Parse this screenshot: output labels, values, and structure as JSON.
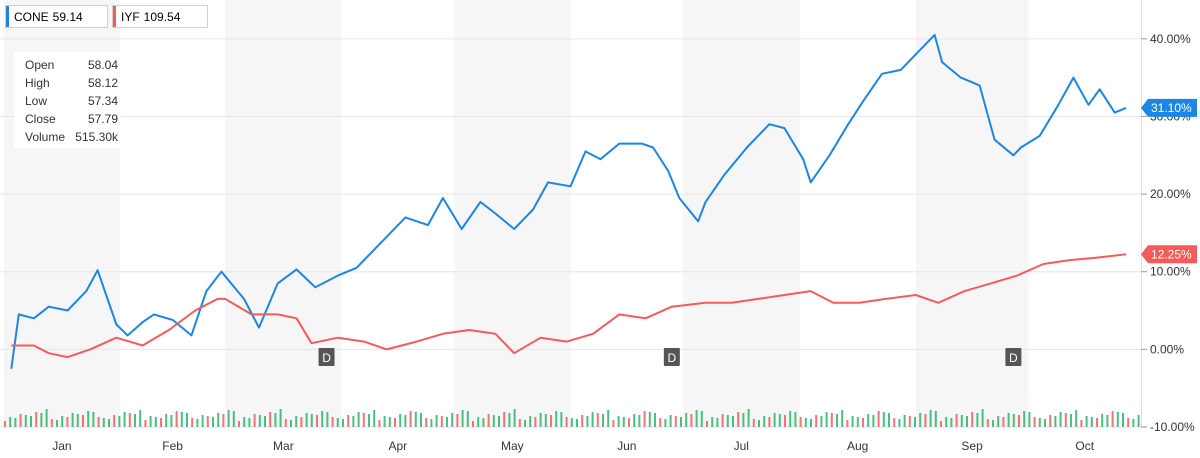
{
  "legend": [
    {
      "symbol": "CONE",
      "value": "59.14",
      "color": "#1c86e4"
    },
    {
      "symbol": "IYF",
      "value": "109.54",
      "color": "#f45b5b"
    }
  ],
  "ohlc": [
    {
      "label": "Open",
      "value": "58.04"
    },
    {
      "label": "High",
      "value": "58.12"
    },
    {
      "label": "Low",
      "value": "57.34"
    },
    {
      "label": "Close",
      "value": "57.79"
    },
    {
      "label": "Volume",
      "value": "515.30k"
    }
  ],
  "chart_data": {
    "type": "line",
    "title": "",
    "xlabel": "",
    "ylabel": "",
    "ylim": [
      -10,
      45
    ],
    "grid": true,
    "y_ticks": [
      "40.00%",
      "30.00%",
      "20.00%",
      "10.00%",
      "0.00%",
      "-10.00%"
    ],
    "x_ticks": [
      "Jan",
      "Feb",
      "Mar",
      "Apr",
      "May",
      "Jun",
      "Jul",
      "Aug",
      "Sep",
      "Oct"
    ],
    "dividend_marker_label": "D",
    "dividend_dates": [
      "2017-03-28",
      "2017-06-28",
      "2017-09-27"
    ],
    "series": [
      {
        "name": "CONE",
        "color": "#1c86e4",
        "last_label": "31.10%",
        "points": [
          [
            "2017-01-03",
            -2.5
          ],
          [
            "2017-01-05",
            4.5
          ],
          [
            "2017-01-09",
            4.0
          ],
          [
            "2017-01-13",
            5.5
          ],
          [
            "2017-01-18",
            5.0
          ],
          [
            "2017-01-23",
            7.5
          ],
          [
            "2017-01-26",
            10.2
          ],
          [
            "2017-01-31",
            3.2
          ],
          [
            "2017-02-03",
            1.8
          ],
          [
            "2017-02-07",
            3.5
          ],
          [
            "2017-02-10",
            4.5
          ],
          [
            "2017-02-15",
            3.8
          ],
          [
            "2017-02-20",
            1.8
          ],
          [
            "2017-02-24",
            7.5
          ],
          [
            "2017-02-28",
            10.0
          ],
          [
            "2017-03-06",
            6.5
          ],
          [
            "2017-03-10",
            2.8
          ],
          [
            "2017-03-15",
            8.5
          ],
          [
            "2017-03-20",
            10.3
          ],
          [
            "2017-03-25",
            8.0
          ],
          [
            "2017-03-31",
            9.5
          ],
          [
            "2017-04-05",
            10.5
          ],
          [
            "2017-04-11",
            13.5
          ],
          [
            "2017-04-18",
            17.0
          ],
          [
            "2017-04-24",
            16.0
          ],
          [
            "2017-04-28",
            19.5
          ],
          [
            "2017-05-03",
            15.5
          ],
          [
            "2017-05-08",
            19.0
          ],
          [
            "2017-05-12",
            17.5
          ],
          [
            "2017-05-17",
            15.5
          ],
          [
            "2017-05-22",
            18.0
          ],
          [
            "2017-05-26",
            21.5
          ],
          [
            "2017-06-01",
            21.0
          ],
          [
            "2017-06-05",
            25.5
          ],
          [
            "2017-06-09",
            24.5
          ],
          [
            "2017-06-14",
            26.5
          ],
          [
            "2017-06-20",
            26.5
          ],
          [
            "2017-06-23",
            26.0
          ],
          [
            "2017-06-27",
            23.0
          ],
          [
            "2017-06-30",
            19.5
          ],
          [
            "2017-07-05",
            16.5
          ],
          [
            "2017-07-07",
            19.0
          ],
          [
            "2017-07-12",
            22.5
          ],
          [
            "2017-07-18",
            26.0
          ],
          [
            "2017-07-24",
            29.0
          ],
          [
            "2017-07-28",
            28.5
          ],
          [
            "2017-08-02",
            24.5
          ],
          [
            "2017-08-04",
            21.5
          ],
          [
            "2017-08-09",
            25.0
          ],
          [
            "2017-08-14",
            29.0
          ],
          [
            "2017-08-18",
            32.0
          ],
          [
            "2017-08-23",
            35.5
          ],
          [
            "2017-08-28",
            36.0
          ],
          [
            "2017-09-01",
            38.0
          ],
          [
            "2017-09-06",
            40.5
          ],
          [
            "2017-09-08",
            37.0
          ],
          [
            "2017-09-13",
            35.0
          ],
          [
            "2017-09-18",
            34.0
          ],
          [
            "2017-09-22",
            27.0
          ],
          [
            "2017-09-27",
            25.0
          ],
          [
            "2017-09-29",
            26.0
          ],
          [
            "2017-10-04",
            27.5
          ],
          [
            "2017-10-09",
            31.5
          ],
          [
            "2017-10-13",
            35.0
          ],
          [
            "2017-10-17",
            31.5
          ],
          [
            "2017-10-20",
            33.5
          ],
          [
            "2017-10-24",
            30.5
          ],
          [
            "2017-10-27",
            31.1
          ]
        ]
      },
      {
        "name": "IYF",
        "color": "#f45b5b",
        "last_label": "12.25%",
        "points": [
          [
            "2017-01-03",
            0.5
          ],
          [
            "2017-01-09",
            0.5
          ],
          [
            "2017-01-13",
            -0.5
          ],
          [
            "2017-01-18",
            -1.0
          ],
          [
            "2017-01-24",
            0.0
          ],
          [
            "2017-01-31",
            1.5
          ],
          [
            "2017-02-07",
            0.5
          ],
          [
            "2017-02-14",
            2.5
          ],
          [
            "2017-02-21",
            5.0
          ],
          [
            "2017-02-27",
            6.5
          ],
          [
            "2017-03-01",
            6.5
          ],
          [
            "2017-03-08",
            4.5
          ],
          [
            "2017-03-15",
            4.5
          ],
          [
            "2017-03-20",
            4.0
          ],
          [
            "2017-03-24",
            0.8
          ],
          [
            "2017-03-31",
            1.5
          ],
          [
            "2017-04-07",
            1.0
          ],
          [
            "2017-04-13",
            0.0
          ],
          [
            "2017-04-21",
            1.0
          ],
          [
            "2017-04-28",
            2.0
          ],
          [
            "2017-05-05",
            2.5
          ],
          [
            "2017-05-12",
            2.0
          ],
          [
            "2017-05-17",
            -0.5
          ],
          [
            "2017-05-24",
            1.5
          ],
          [
            "2017-05-31",
            1.0
          ],
          [
            "2017-06-07",
            2.0
          ],
          [
            "2017-06-14",
            4.5
          ],
          [
            "2017-06-21",
            4.0
          ],
          [
            "2017-06-28",
            5.5
          ],
          [
            "2017-07-07",
            6.0
          ],
          [
            "2017-07-14",
            6.0
          ],
          [
            "2017-07-21",
            6.5
          ],
          [
            "2017-07-28",
            7.0
          ],
          [
            "2017-08-04",
            7.5
          ],
          [
            "2017-08-10",
            6.0
          ],
          [
            "2017-08-17",
            6.0
          ],
          [
            "2017-08-24",
            6.5
          ],
          [
            "2017-09-01",
            7.0
          ],
          [
            "2017-09-07",
            6.0
          ],
          [
            "2017-09-14",
            7.5
          ],
          [
            "2017-09-21",
            8.5
          ],
          [
            "2017-09-28",
            9.5
          ],
          [
            "2017-10-05",
            11.0
          ],
          [
            "2017-10-12",
            11.5
          ],
          [
            "2017-10-19",
            11.8
          ],
          [
            "2017-10-27",
            12.25
          ]
        ]
      }
    ]
  }
}
